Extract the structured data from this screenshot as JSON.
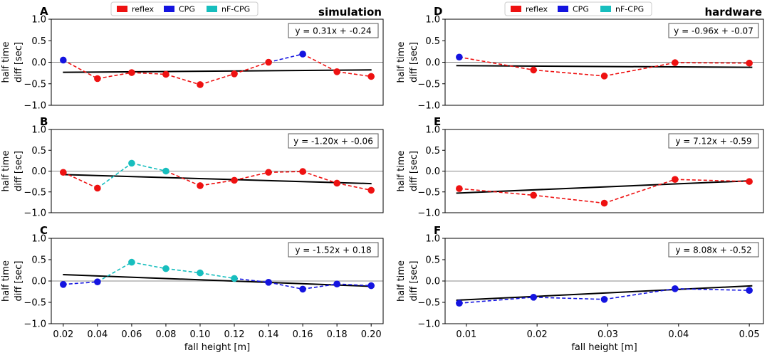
{
  "figure": {
    "ylabel_line1": "half time",
    "ylabel_line2": "diff [sec]",
    "colors": {
      "reflex": "#ee1111",
      "CPG": "#1414e0",
      "nF-CPG": "#17bebe",
      "fit": "#000000",
      "zero_line": "#888888"
    }
  },
  "chart_data": [
    {
      "id": "A",
      "type": "line",
      "letter": "A",
      "title": "simulation",
      "legend": [
        "reflex",
        "CPG",
        "nF-CPG"
      ],
      "xlim": [
        0.013,
        0.207
      ],
      "ylim": [
        -1.0,
        1.0
      ],
      "yticks": [
        -1.0,
        -0.5,
        0.0,
        0.5,
        1.0
      ],
      "ytick_labels": [
        "−1.0",
        "−0.5",
        "0.0",
        "0.5",
        "1.0"
      ],
      "xticks": [],
      "xtick_labels": [],
      "xlabel": "",
      "equation": "y = 0.31x + -0.24",
      "fit": {
        "slope": 0.31,
        "intercept": -0.24
      },
      "x": [
        0.02,
        0.04,
        0.06,
        0.08,
        0.1,
        0.12,
        0.14,
        0.16,
        0.18,
        0.2
      ],
      "y": [
        0.05,
        -0.38,
        -0.24,
        -0.28,
        -0.52,
        -0.27,
        0.0,
        0.19,
        -0.22,
        -0.33
      ],
      "point_types": [
        "CPG",
        "reflex",
        "reflex",
        "reflex",
        "reflex",
        "reflex",
        "reflex",
        "CPG",
        "reflex",
        "reflex"
      ]
    },
    {
      "id": "B",
      "type": "line",
      "letter": "B",
      "title": "",
      "legend": [],
      "xlim": [
        0.013,
        0.207
      ],
      "ylim": [
        -1.0,
        1.0
      ],
      "yticks": [
        -1.0,
        -0.5,
        0.0,
        0.5,
        1.0
      ],
      "ytick_labels": [
        "−1.0",
        "−0.5",
        "0.0",
        "0.5",
        "1.0"
      ],
      "xticks": [],
      "xtick_labels": [],
      "xlabel": "",
      "equation": "y = -1.20x + -0.06",
      "fit": {
        "slope": -1.2,
        "intercept": -0.06
      },
      "x": [
        0.02,
        0.04,
        0.06,
        0.08,
        0.1,
        0.12,
        0.14,
        0.16,
        0.18,
        0.2
      ],
      "y": [
        -0.03,
        -0.41,
        0.19,
        0.0,
        -0.35,
        -0.22,
        -0.03,
        -0.01,
        -0.29,
        -0.46
      ],
      "point_types": [
        "reflex",
        "reflex",
        "nF-CPG",
        "nF-CPG",
        "reflex",
        "reflex",
        "reflex",
        "reflex",
        "reflex",
        "reflex"
      ]
    },
    {
      "id": "C",
      "type": "line",
      "letter": "C",
      "title": "",
      "legend": [],
      "xlim": [
        0.013,
        0.207
      ],
      "ylim": [
        -1.0,
        1.0
      ],
      "yticks": [
        -1.0,
        -0.5,
        0.0,
        0.5,
        1.0
      ],
      "ytick_labels": [
        "−1.0",
        "−0.5",
        "0.0",
        "0.5",
        "1.0"
      ],
      "xticks": [
        0.02,
        0.04,
        0.06,
        0.08,
        0.1,
        0.12,
        0.14,
        0.16,
        0.18,
        0.2
      ],
      "xtick_labels": [
        "0.02",
        "0.04",
        "0.06",
        "0.08",
        "0.10",
        "0.12",
        "0.14",
        "0.16",
        "0.18",
        "0.20"
      ],
      "xlabel": "fall height [m]",
      "equation": "y = -1.52x + 0.18",
      "fit": {
        "slope": -1.52,
        "intercept": 0.18
      },
      "x": [
        0.02,
        0.04,
        0.06,
        0.08,
        0.1,
        0.12,
        0.14,
        0.16,
        0.18,
        0.2
      ],
      "y": [
        -0.08,
        -0.02,
        0.44,
        0.29,
        0.19,
        0.06,
        -0.03,
        -0.19,
        -0.07,
        -0.11
      ],
      "point_types": [
        "CPG",
        "CPG",
        "nF-CPG",
        "nF-CPG",
        "nF-CPG",
        "nF-CPG",
        "CPG",
        "CPG",
        "CPG",
        "CPG"
      ]
    },
    {
      "id": "D",
      "type": "line",
      "letter": "D",
      "title": "hardware",
      "legend": [
        "reflex",
        "CPG",
        "nF-CPG"
      ],
      "xlim": [
        0.007,
        0.052
      ],
      "ylim": [
        -1.0,
        1.0
      ],
      "yticks": [
        -1.0,
        -0.5,
        0.0,
        0.5,
        1.0
      ],
      "ytick_labels": [
        "−1.0",
        "−0.5",
        "0.0",
        "0.5",
        "1.0"
      ],
      "xticks": [],
      "xtick_labels": [],
      "xlabel": "",
      "equation": "y = -0.96x + -0.07",
      "fit": {
        "slope": -0.96,
        "intercept": -0.07
      },
      "x": [
        0.009,
        0.0195,
        0.0295,
        0.0395,
        0.05
      ],
      "y": [
        0.12,
        -0.18,
        -0.32,
        -0.01,
        -0.02
      ],
      "point_types": [
        "CPG",
        "reflex",
        "reflex",
        "reflex",
        "reflex"
      ]
    },
    {
      "id": "E",
      "type": "line",
      "letter": "E",
      "title": "",
      "legend": [],
      "xlim": [
        0.007,
        0.052
      ],
      "ylim": [
        -1.0,
        1.0
      ],
      "yticks": [
        -1.0,
        -0.5,
        0.0,
        0.5,
        1.0
      ],
      "ytick_labels": [
        "−1.0",
        "−0.5",
        "0.0",
        "0.5",
        "1.0"
      ],
      "xticks": [],
      "xtick_labels": [],
      "xlabel": "",
      "equation": "y = 7.12x + -0.59",
      "fit": {
        "slope": 7.12,
        "intercept": -0.59
      },
      "x": [
        0.009,
        0.0195,
        0.0295,
        0.0395,
        0.05
      ],
      "y": [
        -0.42,
        -0.58,
        -0.77,
        -0.2,
        -0.25
      ],
      "point_types": [
        "reflex",
        "reflex",
        "reflex",
        "reflex",
        "reflex"
      ]
    },
    {
      "id": "F",
      "type": "line",
      "letter": "F",
      "title": "",
      "legend": [],
      "xlim": [
        0.007,
        0.052
      ],
      "ylim": [
        -1.0,
        1.0
      ],
      "yticks": [
        -1.0,
        -0.5,
        0.0,
        0.5,
        1.0
      ],
      "ytick_labels": [
        "−1.0",
        "−0.5",
        "0.0",
        "0.5",
        "1.0"
      ],
      "xticks": [
        0.01,
        0.02,
        0.03,
        0.04,
        0.05
      ],
      "xtick_labels": [
        "0.01",
        "0.02",
        "0.03",
        "0.04",
        "0.05"
      ],
      "xlabel": "fall height [m]",
      "equation": "y = 8.08x + -0.52",
      "fit": {
        "slope": 8.08,
        "intercept": -0.52
      },
      "x": [
        0.009,
        0.0195,
        0.0295,
        0.0395,
        0.05
      ],
      "y": [
        -0.52,
        -0.38,
        -0.43,
        -0.18,
        -0.22
      ],
      "point_types": [
        "CPG",
        "CPG",
        "CPG",
        "CPG",
        "CPG"
      ]
    }
  ]
}
